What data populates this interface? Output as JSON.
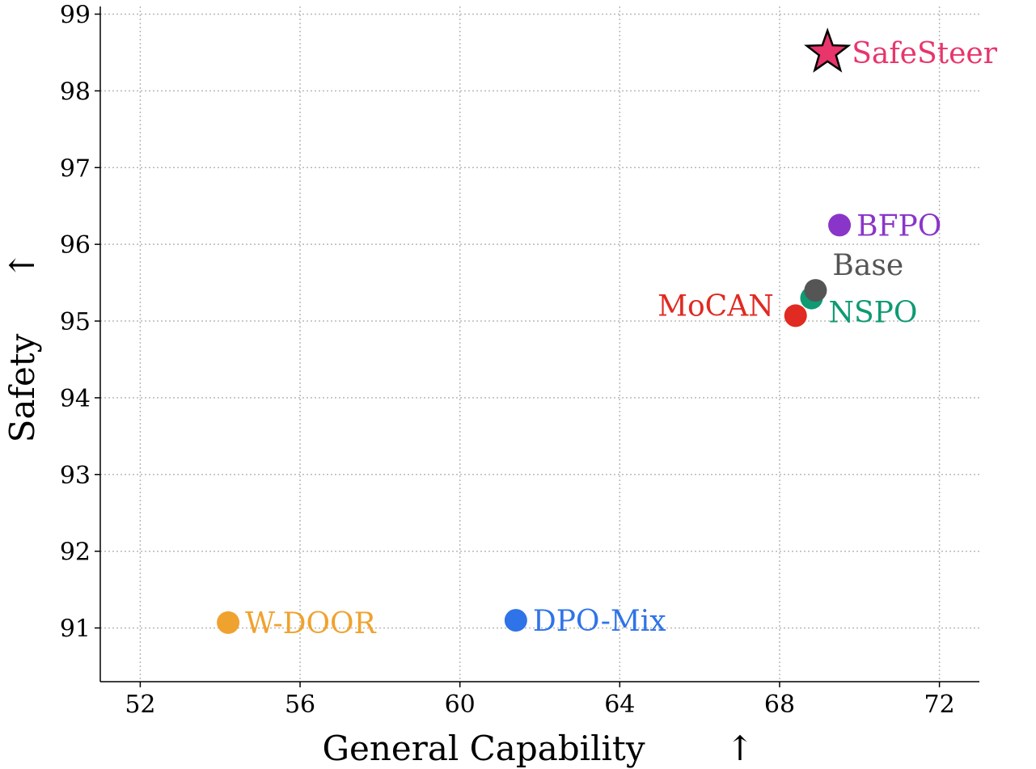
{
  "chart_data": {
    "type": "scatter",
    "xlabel": "General Capability",
    "ylabel": "Safety",
    "xlabel_arrow": "↑",
    "ylabel_arrow": "↑",
    "xlim": [
      51,
      73
    ],
    "ylim": [
      90.3,
      99.1
    ],
    "x_ticks": [
      52,
      56,
      60,
      64,
      68,
      72
    ],
    "y_ticks": [
      91,
      92,
      93,
      94,
      95,
      96,
      97,
      98,
      99
    ],
    "grid": true,
    "points": [
      {
        "name": "SafeSteer",
        "x": 69.2,
        "y": 98.5,
        "color": "#e8356b",
        "marker": "star",
        "label_pos": "right"
      },
      {
        "name": "BFPO",
        "x": 69.5,
        "y": 96.25,
        "color": "#8a35c9",
        "marker": "circle",
        "label_pos": "right"
      },
      {
        "name": "Base",
        "x": 68.9,
        "y": 95.4,
        "color": "#555555",
        "marker": "circle",
        "label_pos": "above-right"
      },
      {
        "name": "NSPO",
        "x": 68.8,
        "y": 95.3,
        "color": "#0e9a72",
        "marker": "circle",
        "label_pos": "below-right"
      },
      {
        "name": "MoCAN",
        "x": 68.4,
        "y": 95.07,
        "color": "#e02a22",
        "marker": "circle",
        "label_pos": "left"
      },
      {
        "name": "DPO-Mix",
        "x": 61.4,
        "y": 91.1,
        "color": "#2f73e8",
        "marker": "circle",
        "label_pos": "right"
      },
      {
        "name": "W-DOOR",
        "x": 54.2,
        "y": 91.07,
        "color": "#f0a22e",
        "marker": "circle",
        "label_pos": "right"
      }
    ]
  }
}
